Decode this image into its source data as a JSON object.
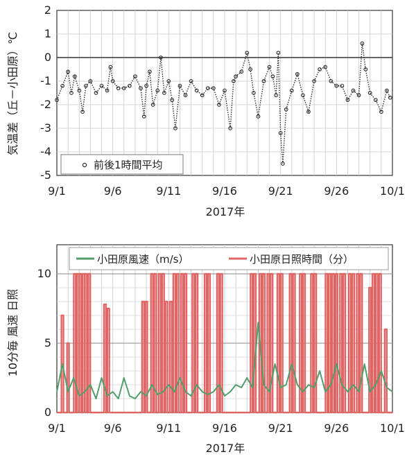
{
  "chart_data": [
    {
      "type": "scatter",
      "x_range": [
        "9/1",
        "10/1"
      ],
      "x_ticks": [
        "9/1",
        "9/6",
        "9/11",
        "9/16",
        "9/21",
        "9/26",
        "10/1"
      ],
      "x_tick_days": [
        0,
        5,
        10,
        15,
        20,
        25,
        30
      ],
      "xlabel": "2017年",
      "ylabel": "気温差（丘－小田原）℃",
      "ylim": [
        -5,
        2
      ],
      "y_ticks": [
        "2",
        "1",
        "0",
        "-1",
        "-2",
        "-3",
        "-4",
        "-5"
      ],
      "grid": true,
      "legend_position": "bottom-left",
      "marker_color": "#2a2a2a",
      "series": [
        {
          "name": "前後1時間平均",
          "x_days": [
            0.0,
            0.5,
            1.0,
            1.3,
            1.6,
            2.0,
            2.3,
            2.6,
            3.0,
            3.5,
            4.0,
            4.5,
            4.8,
            5.0,
            5.5,
            6.0,
            6.5,
            7.0,
            7.5,
            7.8,
            8.0,
            8.3,
            8.6,
            9.0,
            9.3,
            9.6,
            10.0,
            10.3,
            10.6,
            11.0,
            11.5,
            12.0,
            12.5,
            13.0,
            13.5,
            14.0,
            14.5,
            15.0,
            15.5,
            15.8,
            16.0,
            16.5,
            17.0,
            17.3,
            17.6,
            18.0,
            18.5,
            19.0,
            19.3,
            19.6,
            19.8,
            20.0,
            20.2,
            20.5,
            21.0,
            21.5,
            22.0,
            22.5,
            23.0,
            23.5,
            24.0,
            24.5,
            25.0,
            25.5,
            26.0,
            26.5,
            27.0,
            27.3,
            27.6,
            28.0,
            28.5,
            29.0,
            29.5,
            29.8
          ],
          "y": [
            -1.8,
            -1.2,
            -0.6,
            -1.5,
            -0.8,
            -1.4,
            -2.3,
            -1.2,
            -1.0,
            -1.5,
            -1.2,
            -1.4,
            -0.4,
            -1.0,
            -1.3,
            -1.3,
            -1.2,
            -0.8,
            -1.3,
            -2.5,
            -1.2,
            -0.6,
            -2.0,
            -1.4,
            0.0,
            -1.5,
            -1.0,
            -1.8,
            -3.0,
            -1.2,
            -1.6,
            -1.0,
            -1.4,
            -1.6,
            -1.3,
            -1.3,
            -2.0,
            -1.4,
            -3.0,
            -1.0,
            -0.8,
            -0.6,
            0.2,
            -0.5,
            -1.5,
            -2.5,
            -1.0,
            -0.4,
            -0.8,
            -1.6,
            0.2,
            -3.2,
            -4.5,
            -2.2,
            -1.4,
            -0.7,
            -1.6,
            -2.3,
            -1.0,
            -0.5,
            -0.4,
            -1.0,
            -1.2,
            -1.2,
            -1.8,
            -1.4,
            -1.6,
            0.6,
            -0.5,
            -1.5,
            -1.8,
            -2.3,
            -1.4,
            -1.7
          ]
        }
      ]
    },
    {
      "type": "line",
      "x_range": [
        "9/1",
        "10/1"
      ],
      "x_ticks": [
        "9/1",
        "9/6",
        "9/11",
        "9/16",
        "9/21",
        "9/26",
        "10/1"
      ],
      "x_tick_days": [
        0,
        5,
        10,
        15,
        20,
        25,
        30
      ],
      "xlabel": "2017年",
      "ylabel": "10分毎 風速 日照",
      "ylim": [
        0,
        10
      ],
      "y_ticks": [
        "10",
        "5",
        "0"
      ],
      "grid": true,
      "legend_position": "top",
      "series": [
        {
          "name": "小田原風速（m/s）",
          "color": "#4f9e6b",
          "x_days": [
            0,
            0.5,
            1.0,
            1.5,
            2.0,
            2.5,
            3.0,
            3.5,
            4.0,
            4.5,
            5.0,
            5.5,
            6.0,
            6.5,
            7.0,
            7.5,
            8.0,
            8.5,
            9.0,
            9.5,
            10.0,
            10.5,
            11.0,
            11.5,
            12.0,
            12.5,
            13.0,
            13.5,
            14.0,
            14.5,
            15.0,
            15.5,
            16.0,
            16.5,
            17.0,
            17.5,
            18.0,
            18.5,
            19.0,
            19.5,
            20.0,
            20.5,
            21.0,
            21.5,
            22.0,
            22.5,
            23.0,
            23.5,
            24.0,
            24.5,
            25.0,
            25.5,
            26.0,
            26.5,
            27.0,
            27.5,
            28.0,
            28.5,
            29.0,
            29.5,
            30.0
          ],
          "values": [
            1.5,
            3.5,
            1.5,
            2.5,
            1.2,
            1.5,
            2.0,
            1.0,
            2.5,
            1.2,
            1.5,
            1.0,
            2.5,
            1.2,
            1.0,
            1.5,
            1.2,
            2.0,
            1.3,
            1.5,
            2.0,
            1.5,
            2.5,
            1.5,
            1.2,
            2.0,
            1.5,
            1.3,
            1.5,
            2.0,
            1.2,
            1.5,
            2.0,
            1.8,
            2.5,
            1.8,
            6.5,
            2.0,
            1.5,
            3.5,
            1.8,
            2.0,
            3.5,
            2.0,
            1.5,
            2.0,
            1.8,
            3.0,
            1.5,
            2.0,
            3.5,
            2.0,
            1.5,
            2.0,
            1.5,
            3.5,
            1.5,
            2.0,
            3.0,
            1.8,
            1.5
          ]
        },
        {
          "name": "小田原日照時間（分）",
          "color": "#e06666",
          "x_days": [
            0.5,
            1.0,
            1.6,
            1.9,
            2.1,
            2.4,
            2.6,
            2.9,
            4.3,
            4.6,
            7.7,
            8.0,
            8.5,
            8.8,
            9.2,
            9.5,
            9.8,
            10.2,
            10.5,
            10.8,
            11.2,
            11.5,
            12.2,
            12.5,
            13.3,
            13.6,
            14.4,
            14.7,
            17.4,
            17.7,
            18.2,
            18.5,
            18.9,
            19.2,
            19.8,
            20.1,
            20.9,
            21.2,
            21.8,
            22.1,
            22.8,
            23.1,
            24.1,
            24.4,
            24.7,
            25.0,
            25.4,
            25.7,
            26.2,
            26.5,
            26.9,
            27.2,
            28.0,
            28.3,
            28.6,
            28.9,
            29.4
          ],
          "values": [
            7,
            5,
            10,
            10,
            10,
            10,
            10,
            10,
            7.8,
            7.5,
            8,
            8,
            10,
            10,
            10,
            10,
            8,
            8,
            10,
            10,
            10,
            10,
            10,
            10,
            10,
            10,
            10,
            10,
            10,
            10,
            10,
            10,
            10,
            10,
            10,
            10,
            10,
            10,
            10,
            10,
            10,
            10,
            10,
            10,
            10,
            10,
            10,
            10,
            10,
            10,
            10,
            10,
            9,
            10,
            10,
            10,
            6
          ]
        }
      ]
    }
  ]
}
